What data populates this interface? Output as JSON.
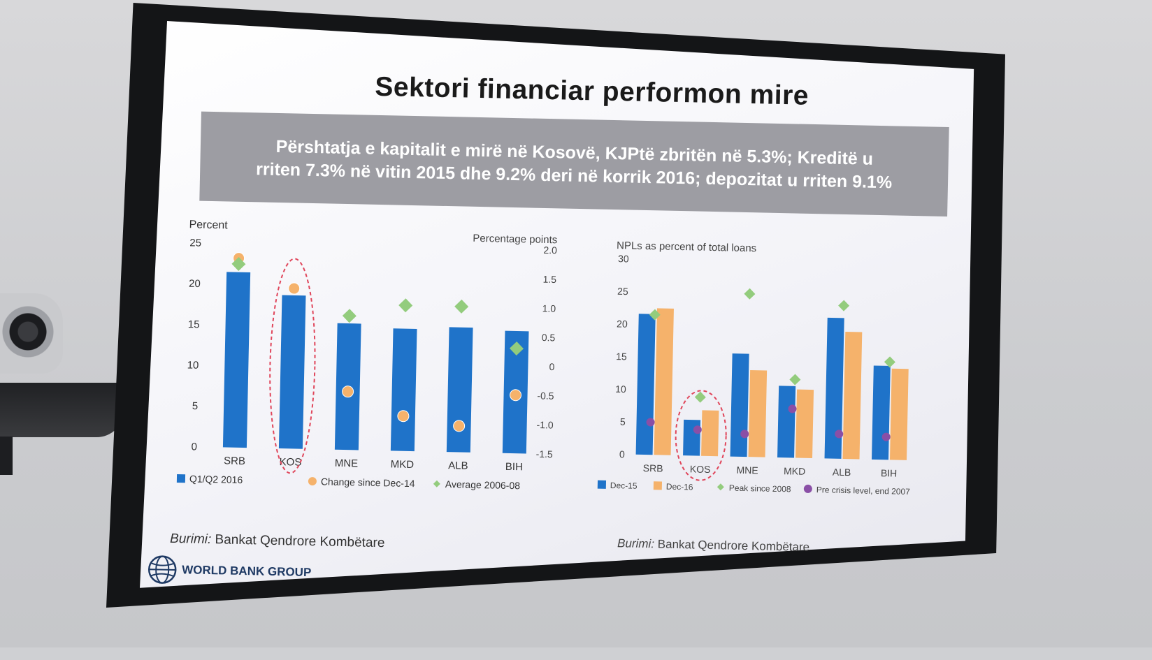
{
  "slide": {
    "title": "Sektori financiar performon mire",
    "banner": {
      "line1": "Përshtatja e kapitalit e mirë në Kosovë, KJPtë zbritën në 5.3%; Kreditë u",
      "line2": "rriten 7.3% në vitin 2015 dhe 9.2% deri në korrik 2016; depozitat u rriten 9.1%"
    },
    "source_left": {
      "label": "Burimi:",
      "text": "Bankat Qendrore Kombëtare"
    },
    "source_right": {
      "label": "Burimi:",
      "text": "Bankat Qendrore Kombëtare"
    },
    "logo_text": "WORLD BANK GROUP"
  },
  "colors": {
    "blue": "#1f73c9",
    "orange": "#f5b26b",
    "green": "#93cc7d",
    "purple": "#8a4fa6",
    "highlight": "#e0455a"
  },
  "chart_data": [
    {
      "type": "bar",
      "categories": [
        "SRB",
        "KOS",
        "MNE",
        "MKD",
        "ALB",
        "BIH"
      ],
      "ylabel_left": "Percent",
      "ylabel_right": "Percentage points",
      "ylim_left": [
        0,
        25
      ],
      "yticks_left": [
        "0",
        "5",
        "10",
        "15",
        "20",
        "25"
      ],
      "ylim_right": [
        -1.5,
        2.0
      ],
      "yticks_right": [
        "-1.5",
        "-1.0",
        "-0.5",
        "0",
        "0.5",
        "1.0",
        "1.5",
        "2.0"
      ],
      "series": [
        {
          "name": "Q1/Q2 2016",
          "kind": "bar",
          "axis": "left",
          "values": [
            21.5,
            18.8,
            15.5,
            15.0,
            15.3,
            15.0
          ]
        },
        {
          "name": "Change since Dec-14",
          "kind": "marker",
          "shape": "circle",
          "axis": "right",
          "values": [
            1.75,
            1.25,
            -0.5,
            -0.9,
            -1.05,
            -0.5
          ]
        },
        {
          "name": "Average 2006-08",
          "kind": "marker",
          "shape": "diamond",
          "axis": "right",
          "values": [
            1.65,
            null,
            0.8,
            1.0,
            1.0,
            0.3
          ]
        }
      ],
      "highlight": "KOS"
    },
    {
      "type": "bar",
      "categories": [
        "SRB",
        "KOS",
        "MNE",
        "MKD",
        "ALB",
        "BIH"
      ],
      "ylabel": "NPLs as percent of total loans",
      "ylim": [
        0,
        30
      ],
      "yticks": [
        "0",
        "5",
        "10",
        "15",
        "20",
        "25",
        "30"
      ],
      "series": [
        {
          "name": "Dec-15",
          "kind": "bar",
          "values": [
            21.6,
            5.5,
            15.8,
            11.0,
            21.6,
            14.4
          ]
        },
        {
          "name": "Dec-16",
          "kind": "bar",
          "values": [
            22.5,
            7.0,
            13.3,
            10.5,
            19.5,
            14.0
          ]
        },
        {
          "name": "Peak since 2008",
          "kind": "marker",
          "shape": "diamond",
          "values": [
            21.5,
            9.0,
            25.0,
            12.0,
            23.5,
            15.0
          ]
        },
        {
          "name": "Pre crisis level, end 2007",
          "kind": "marker",
          "shape": "circle",
          "values": [
            5.0,
            4.0,
            3.5,
            7.5,
            3.8,
            3.5
          ]
        }
      ],
      "highlight": "KOS"
    }
  ]
}
